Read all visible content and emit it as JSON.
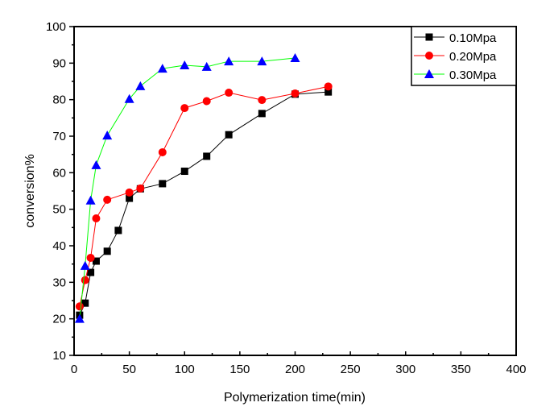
{
  "chart_data": {
    "type": "line",
    "title": "",
    "xlabel": "Polymerization time(min)",
    "ylabel": "conversion%",
    "xlim": [
      0,
      400
    ],
    "ylim": [
      10,
      100
    ],
    "x_ticks": [
      0,
      50,
      100,
      150,
      200,
      250,
      300,
      350,
      400
    ],
    "x_tick_labels": [
      "0",
      "50",
      "100",
      "150",
      "200",
      "250",
      "300",
      "350",
      "400"
    ],
    "y_ticks": [
      10,
      20,
      30,
      40,
      50,
      60,
      70,
      80,
      90,
      100
    ],
    "y_tick_labels": [
      "10",
      "20",
      "30",
      "40",
      "50",
      "60",
      "70",
      "80",
      "90",
      "100"
    ],
    "grid": false,
    "legend_position": "top-right",
    "series": [
      {
        "name": "0.10Mpa",
        "color": "#000000",
        "marker": "square",
        "x": [
          5,
          10,
          15,
          20,
          30,
          40,
          50,
          60,
          80,
          100,
          120,
          140,
          170,
          200,
          230
        ],
        "y": [
          21.0,
          24.3,
          32.7,
          35.8,
          38.5,
          44.2,
          53.0,
          55.6,
          57.0,
          60.4,
          64.5,
          70.4,
          76.2,
          81.5,
          82.1
        ]
      },
      {
        "name": "0.20Mpa",
        "color": "#ff0000",
        "marker": "circle",
        "x": [
          5,
          10,
          15,
          20,
          30,
          50,
          60,
          80,
          100,
          120,
          140,
          170,
          200,
          230
        ],
        "y": [
          23.4,
          30.6,
          36.7,
          47.5,
          52.6,
          54.6,
          55.7,
          65.6,
          77.7,
          79.6,
          81.9,
          79.9,
          81.7,
          83.6
        ]
      },
      {
        "name": "0.30Mpa",
        "color": "#00ff00",
        "marker_color": "#0000ff",
        "marker": "triangle",
        "x": [
          5,
          10,
          15,
          20,
          30,
          50,
          60,
          80,
          100,
          120,
          140,
          170,
          200
        ],
        "y": [
          20.0,
          34.5,
          52.4,
          62.1,
          70.2,
          80.2,
          83.7,
          88.5,
          89.4,
          89.0,
          90.5,
          90.5,
          91.4
        ]
      }
    ]
  }
}
